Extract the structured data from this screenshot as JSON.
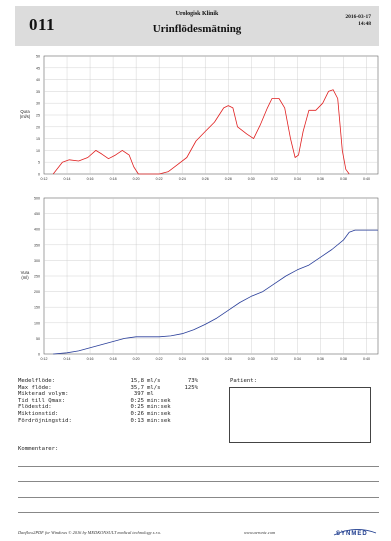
{
  "header": {
    "id": "011",
    "clinic": "Urologisk Klinik",
    "title": "Urinflödesmätning",
    "date": "2016-03-17",
    "time": "14:48"
  },
  "colors": {
    "flow": "#e02020",
    "volume": "#2a3f9a",
    "grid": "#c8c8c8"
  },
  "chart_data": [
    {
      "type": "line",
      "ylabel": "Qura\n(ml/s)",
      "xlim": [
        12,
        41
      ],
      "ylim": [
        0,
        50
      ],
      "yticks": [
        0,
        5,
        10,
        15,
        20,
        25,
        30,
        35,
        40,
        45,
        50
      ],
      "xticks": [
        "0:12",
        "0:14",
        "0:16",
        "0:18",
        "0:20",
        "0:22",
        "0:24",
        "0:26",
        "0:28",
        "0:30",
        "0:32",
        "0:34",
        "0:36",
        "0:38",
        "0:40"
      ],
      "grid": true,
      "series": [
        {
          "x": [
            12.8,
            13.6,
            14.2,
            15.0,
            15.8,
            16.5,
            17.0,
            17.6,
            18.2,
            18.8,
            19.4,
            19.8,
            20.2,
            21.0,
            22.0,
            22.8,
            23.6,
            24.4,
            25.2,
            26.0,
            26.8,
            27.6,
            28.0,
            28.4,
            28.8,
            29.6,
            30.2,
            30.8,
            31.4,
            31.8,
            32.4,
            32.9,
            33.4,
            33.8,
            34.1,
            34.5,
            35.0,
            35.6,
            36.2,
            36.7,
            37.1,
            37.5,
            37.9,
            38.2,
            38.5
          ],
          "y": [
            0,
            5,
            6,
            5.5,
            7,
            10,
            8.5,
            6.5,
            8,
            10,
            8,
            3,
            0,
            0,
            0,
            1,
            4,
            7,
            14,
            18,
            22,
            28,
            29,
            28,
            20,
            17,
            15,
            21,
            28,
            32,
            32,
            28,
            15,
            7,
            8,
            18,
            27,
            27,
            30,
            35,
            35.7,
            32,
            10,
            2,
            0
          ]
        }
      ]
    },
    {
      "type": "line",
      "ylabel": "Vura\n(ml)",
      "xlim": [
        12,
        41
      ],
      "ylim": [
        0,
        500
      ],
      "yticks": [
        0,
        50,
        100,
        150,
        200,
        250,
        300,
        350,
        400,
        450,
        500
      ],
      "xticks": [
        "0:12",
        "0:14",
        "0:16",
        "0:18",
        "0:20",
        "0:22",
        "0:24",
        "0:26",
        "0:28",
        "0:30",
        "0:32",
        "0:34",
        "0:36",
        "0:38",
        "0:40"
      ],
      "grid": true,
      "series": [
        {
          "x": [
            12.8,
            14,
            15,
            16,
            17,
            18,
            19,
            20,
            21,
            22,
            23,
            24,
            25,
            26,
            27,
            28,
            29,
            30,
            31,
            32,
            33,
            34,
            35,
            36,
            37,
            38,
            38.5,
            39,
            40,
            41
          ],
          "y": [
            0,
            4,
            10,
            20,
            30,
            40,
            50,
            55,
            55,
            55,
            58,
            65,
            78,
            95,
            115,
            140,
            165,
            185,
            200,
            225,
            250,
            270,
            285,
            310,
            335,
            365,
            390,
            397,
            397,
            397
          ]
        }
      ]
    }
  ],
  "results": [
    {
      "label": "Medelflöde:",
      "value": "15,8",
      "unit": "ml/s",
      "pct": "73%"
    },
    {
      "label": "Max flöde:",
      "value": "35,7",
      "unit": "ml/s",
      "pct": "125%"
    },
    {
      "label": "Mikterad volym:",
      "value": "397",
      "unit": "ml",
      "pct": ""
    },
    {
      "label": "Tid till Qmax:",
      "value": "0:25",
      "unit": "min:sek",
      "pct": ""
    },
    {
      "label": "Flödestid:",
      "value": "0:25",
      "unit": "min:sek",
      "pct": ""
    },
    {
      "label": "Miktionstid:",
      "value": "0:26",
      "unit": "min:sek",
      "pct": ""
    },
    {
      "label": "Fördröjningstid:",
      "value": "0:13",
      "unit": "min:sek",
      "pct": ""
    }
  ],
  "patient_label": "Patient:",
  "comments_label": "Kommentarer:",
  "footer": {
    "text": "Danflow2PDF for Windows © 2016 by MEDKONSULT medical technology s.r.o.",
    "url": "www.aeronic.com",
    "logo": "SYNMED"
  }
}
